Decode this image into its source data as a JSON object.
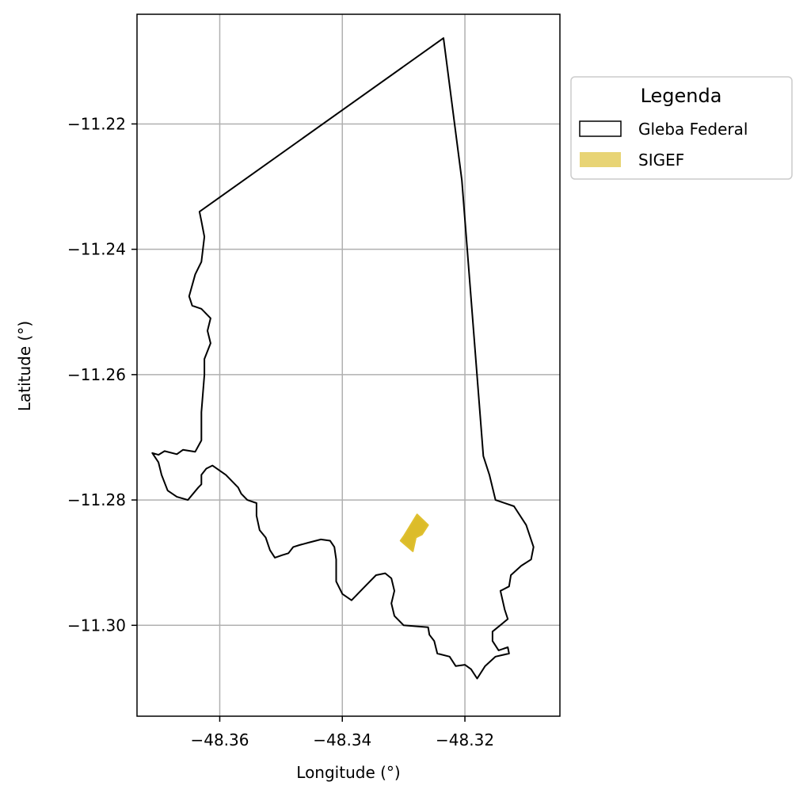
{
  "figure": {
    "xlabel": "Longitude (°)",
    "ylabel": "Latitude (°)",
    "grid": true
  },
  "chart_data": {
    "type": "map",
    "xlim": [
      -48.3735,
      -48.3045
    ],
    "ylim": [
      -11.3145,
      -11.2025
    ],
    "xticks": [
      -48.36,
      -48.34,
      -48.32
    ],
    "yticks": [
      -11.22,
      -11.24,
      -11.26,
      -11.28,
      -11.3
    ],
    "xtick_labels": [
      "−48.36",
      "−48.34",
      "−48.32"
    ],
    "ytick_labels": [
      "−11.22",
      "−11.24",
      "−11.26",
      "−11.28",
      "−11.30"
    ],
    "legend": {
      "title": "Legenda",
      "position": "outside-top-right",
      "entries": [
        {
          "label": "Gleba Federal",
          "style": "outline",
          "edge": "#000000",
          "fill": "none"
        },
        {
          "label": "SIGEF",
          "style": "filled",
          "fill": "#e8d475"
        }
      ]
    },
    "layers": [
      {
        "name": "Gleba Federal",
        "edge": "#000000",
        "fill": "none",
        "coordinates": [
          [
            -48.3235,
            -11.2063
          ],
          [
            -48.3205,
            -11.229
          ],
          [
            -48.317,
            -11.273
          ],
          [
            -48.316,
            -11.276
          ],
          [
            -48.315,
            -11.28
          ],
          [
            -48.312,
            -11.281
          ],
          [
            -48.31,
            -11.284
          ],
          [
            -48.3088,
            -11.2875
          ],
          [
            -48.3092,
            -11.2895
          ],
          [
            -48.3108,
            -11.2905
          ],
          [
            -48.3125,
            -11.292
          ],
          [
            -48.3128,
            -11.2938
          ],
          [
            -48.3142,
            -11.2945
          ],
          [
            -48.3135,
            -11.2975
          ],
          [
            -48.313,
            -11.299
          ],
          [
            -48.3155,
            -11.301
          ],
          [
            -48.3155,
            -11.3025
          ],
          [
            -48.3145,
            -11.304
          ],
          [
            -48.313,
            -11.3035
          ],
          [
            -48.3128,
            -11.3045
          ],
          [
            -48.315,
            -11.305
          ],
          [
            -48.3167,
            -11.3065
          ],
          [
            -48.318,
            -11.3085
          ],
          [
            -48.319,
            -11.307
          ],
          [
            -48.32,
            -11.3063
          ],
          [
            -48.3215,
            -11.3065
          ],
          [
            -48.3225,
            -11.305
          ],
          [
            -48.3245,
            -11.3045
          ],
          [
            -48.325,
            -11.3025
          ],
          [
            -48.3258,
            -11.3015
          ],
          [
            -48.326,
            -11.3003
          ],
          [
            -48.33,
            -11.3
          ],
          [
            -48.3315,
            -11.2985
          ],
          [
            -48.332,
            -11.2965
          ],
          [
            -48.3315,
            -11.2945
          ],
          [
            -48.332,
            -11.2925
          ],
          [
            -48.333,
            -11.2917
          ],
          [
            -48.3345,
            -11.292
          ],
          [
            -48.3365,
            -11.294
          ],
          [
            -48.3385,
            -11.296
          ],
          [
            -48.34,
            -11.295
          ],
          [
            -48.341,
            -11.293
          ],
          [
            -48.341,
            -11.2895
          ],
          [
            -48.3413,
            -11.2875
          ],
          [
            -48.342,
            -11.2865
          ],
          [
            -48.3435,
            -11.2863
          ],
          [
            -48.3455,
            -11.2868
          ],
          [
            -48.347,
            -11.2872
          ],
          [
            -48.348,
            -11.2875
          ],
          [
            -48.3488,
            -11.2885
          ],
          [
            -48.3498,
            -11.2888
          ],
          [
            -48.351,
            -11.2892
          ],
          [
            -48.3518,
            -11.288
          ],
          [
            -48.3525,
            -11.286
          ],
          [
            -48.3535,
            -11.2848
          ],
          [
            -48.354,
            -11.2825
          ],
          [
            -48.354,
            -11.2805
          ],
          [
            -48.3555,
            -11.28
          ],
          [
            -48.3565,
            -11.279
          ],
          [
            -48.357,
            -11.278
          ],
          [
            -48.359,
            -11.276
          ],
          [
            -48.3612,
            -11.2745
          ],
          [
            -48.3622,
            -11.275
          ],
          [
            -48.363,
            -11.276
          ],
          [
            -48.363,
            -11.2775
          ],
          [
            -48.3635,
            -11.278
          ],
          [
            -48.3652,
            -11.28
          ],
          [
            -48.367,
            -11.2795
          ],
          [
            -48.3685,
            -11.2785
          ],
          [
            -48.3695,
            -11.276
          ],
          [
            -48.37,
            -11.274
          ],
          [
            -48.371,
            -11.2725
          ],
          [
            -48.37,
            -11.2728
          ],
          [
            -48.369,
            -11.2722
          ],
          [
            -48.367,
            -11.2727
          ],
          [
            -48.366,
            -11.272
          ],
          [
            -48.364,
            -11.2723
          ],
          [
            -48.363,
            -11.2705
          ],
          [
            -48.363,
            -11.266
          ],
          [
            -48.3625,
            -11.26
          ],
          [
            -48.3625,
            -11.2575
          ],
          [
            -48.3615,
            -11.255
          ],
          [
            -48.362,
            -11.253
          ],
          [
            -48.3615,
            -11.251
          ],
          [
            -48.363,
            -11.2495
          ],
          [
            -48.3645,
            -11.249
          ],
          [
            -48.365,
            -11.2475
          ],
          [
            -48.364,
            -11.244
          ],
          [
            -48.363,
            -11.242
          ],
          [
            -48.3625,
            -11.238
          ],
          [
            -48.363,
            -11.2355
          ],
          [
            -48.3633,
            -11.234
          ],
          [
            -48.3235,
            -11.2063
          ]
        ]
      },
      {
        "name": "SIGEF",
        "edge": "#e0c030",
        "fill": "#dcbc2a",
        "coordinates": [
          [
            -48.3278,
            -11.2823
          ],
          [
            -48.326,
            -11.284
          ],
          [
            -48.327,
            -11.2855
          ],
          [
            -48.328,
            -11.286
          ],
          [
            -48.3285,
            -11.2882
          ],
          [
            -48.3305,
            -11.2865
          ],
          [
            -48.33,
            -11.2858
          ],
          [
            -48.3278,
            -11.2823
          ]
        ]
      }
    ]
  }
}
